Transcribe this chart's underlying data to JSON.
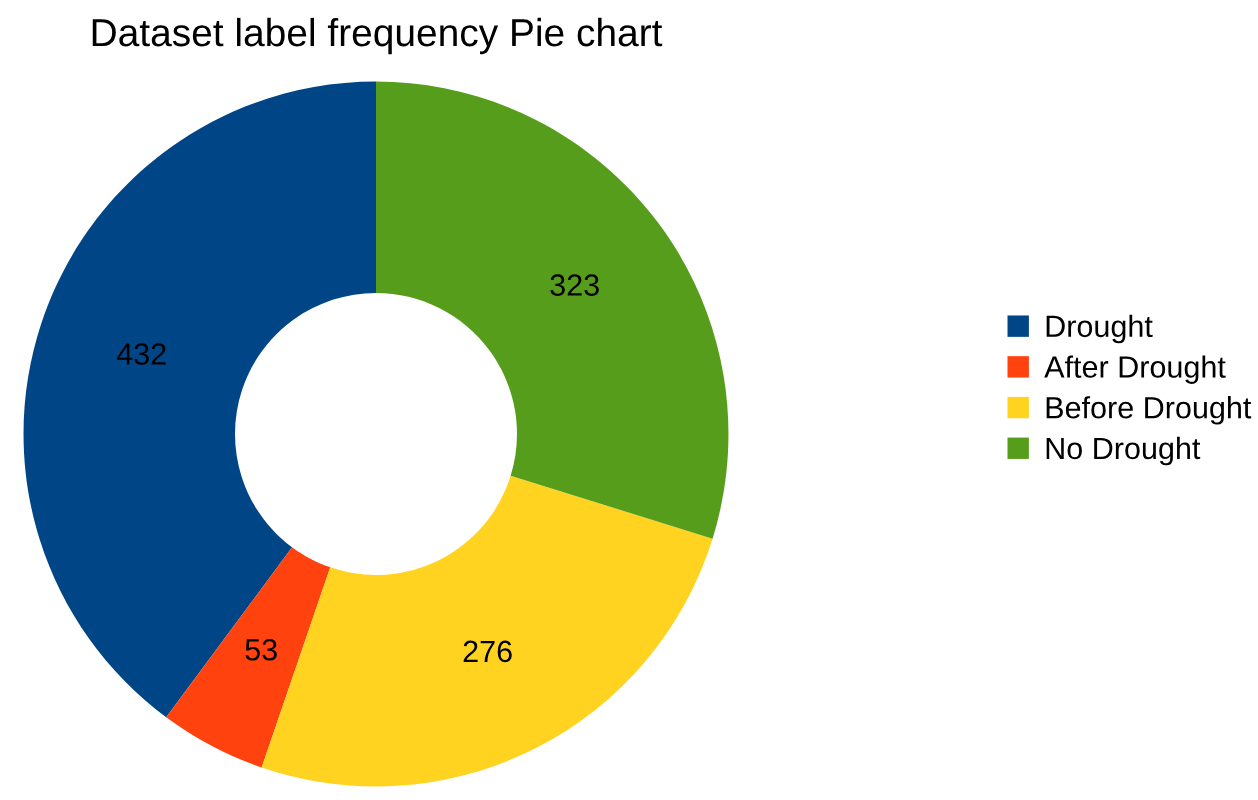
{
  "chart_data": {
    "type": "donut",
    "title": "Dataset label frequency Pie chart",
    "categories": [
      "Drought",
      "After Drought",
      "Before Drought",
      "No Drought"
    ],
    "values": [
      432,
      53,
      276,
      323
    ],
    "colors": [
      "#004586",
      "#ff420e",
      "#ffd320",
      "#579d1c"
    ],
    "data_labels": true,
    "legend": "right"
  }
}
